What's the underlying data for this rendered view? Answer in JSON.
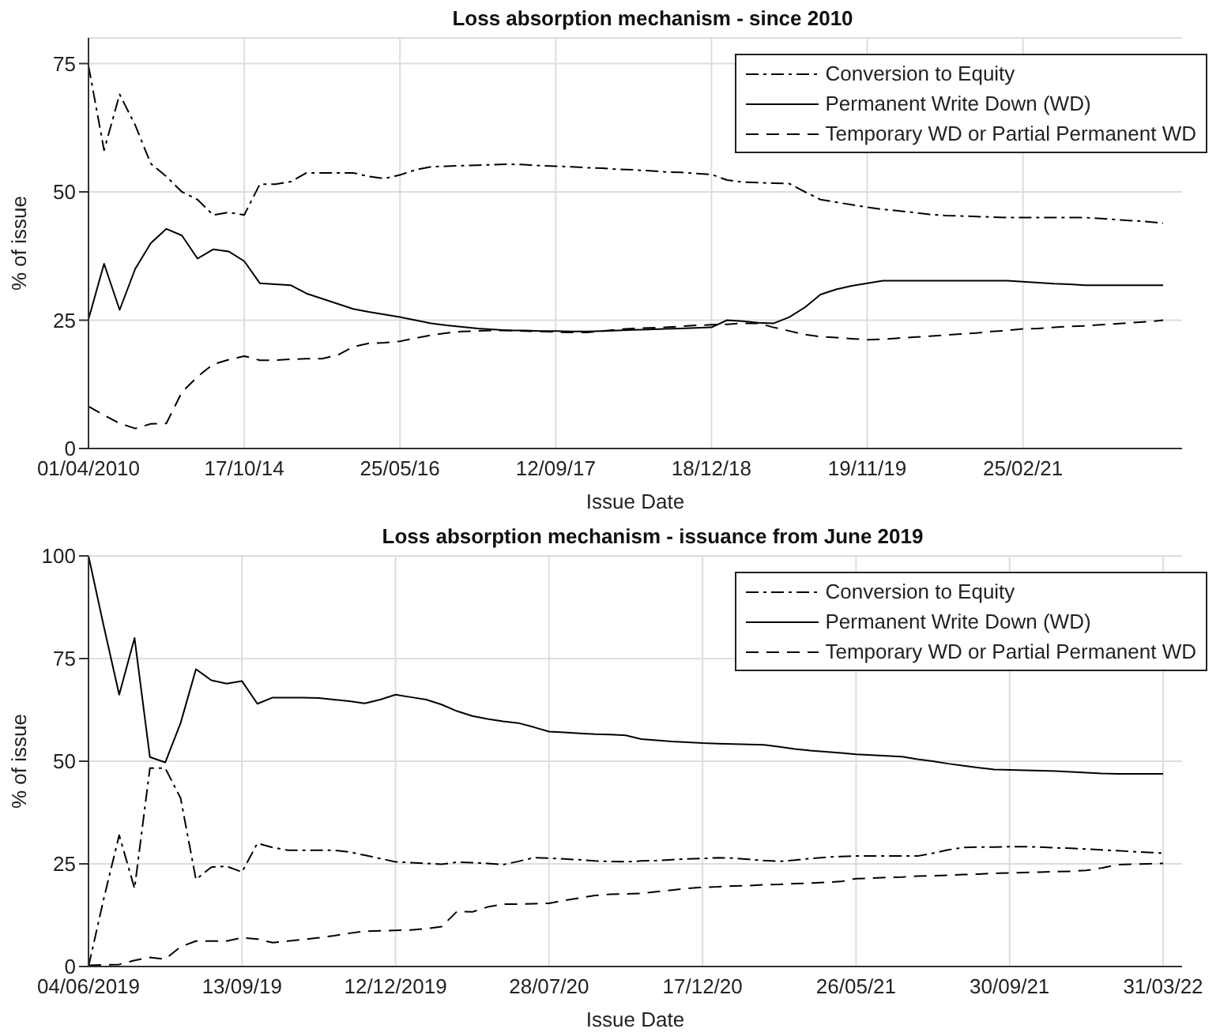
{
  "chart_data": [
    {
      "type": "line",
      "title": "Loss absorption mechanism - since 2010",
      "xlabel": "Issue Date",
      "ylabel": "% of issue",
      "categories": [
        "01/04/2010",
        null,
        null,
        null,
        null,
        null,
        null,
        null,
        null,
        null,
        "17/10/14",
        null,
        null,
        null,
        null,
        null,
        null,
        null,
        null,
        null,
        "25/05/16",
        null,
        null,
        null,
        null,
        null,
        null,
        null,
        null,
        null,
        "12/09/17",
        null,
        null,
        null,
        null,
        null,
        null,
        null,
        null,
        null,
        "18/12/18",
        null,
        null,
        null,
        null,
        null,
        null,
        null,
        null,
        null,
        "19/11/19",
        null,
        null,
        null,
        null,
        null,
        null,
        null,
        null,
        null,
        "25/02/21",
        null,
        null,
        null,
        null,
        null,
        null,
        null,
        null,
        null
      ],
      "ylim": [
        0,
        80
      ],
      "yticks": [
        0,
        25,
        50,
        75
      ],
      "grid": true,
      "legend": "top right",
      "series": [
        {
          "name": "Conversion to Equity",
          "color": "#000000",
          "line_style": "dashdot",
          "values": [
            74.6,
            58.1,
            69,
            63,
            55.5,
            53,
            50,
            48.5,
            45.5,
            46,
            45.5,
            51.5,
            51.5,
            52,
            53.7,
            53.7,
            53.7,
            53.7,
            53,
            52.6,
            53.3,
            54.3,
            54.9,
            55,
            55.1,
            55.2,
            55.3,
            55.4,
            55.3,
            55.1,
            55,
            54.9,
            54.7,
            54.6,
            54.4,
            54.3,
            54.1,
            53.9,
            53.8,
            53.6,
            53.4,
            52.3,
            51.9,
            51.8,
            51.7,
            51.6,
            50,
            48.5,
            48,
            47.5,
            47,
            46.6,
            46.3,
            46,
            45.6,
            45.4,
            45.3,
            45.2,
            45.1,
            45,
            45,
            45,
            45,
            45,
            45,
            44.8,
            44.6,
            44.4,
            44.2,
            43.9
          ]
        },
        {
          "name": "Permanent Write Down (WD)",
          "color": "#000000",
          "line_style": "solid",
          "values": [
            25.2,
            36,
            27,
            35,
            40,
            42.8,
            41.5,
            37,
            38.8,
            38.4,
            36.5,
            32.2,
            32,
            31.8,
            30.2,
            29.2,
            28.2,
            27.2,
            26.6,
            26.1,
            25.6,
            25,
            24.4,
            24,
            23.7,
            23.4,
            23.2,
            23,
            23,
            22.9,
            22.9,
            22.8,
            22.8,
            22.9,
            23,
            23.1,
            23.2,
            23.3,
            23.4,
            23.5,
            23.6,
            25,
            24.8,
            24.5,
            24.4,
            25.6,
            27.5,
            30,
            31,
            31.7,
            32.2,
            32.7,
            32.7,
            32.7,
            32.7,
            32.7,
            32.7,
            32.7,
            32.7,
            32.7,
            32.5,
            32.3,
            32.1,
            32,
            31.8,
            31.8,
            31.8,
            31.8,
            31.8,
            31.8
          ]
        },
        {
          "name": "Temporary WD or Partial Permanent WD",
          "color": "#000000",
          "line_style": "dashed",
          "values": [
            8.2,
            6.5,
            4.9,
            3.9,
            4.8,
            4.9,
            11,
            14,
            16.4,
            17.3,
            18,
            17.2,
            17.2,
            17.4,
            17.5,
            17.5,
            18.2,
            19.8,
            20.5,
            20.6,
            20.9,
            21.5,
            22.1,
            22.5,
            22.8,
            22.9,
            23,
            23,
            22.9,
            22.8,
            22.7,
            22.6,
            22.6,
            22.9,
            23.2,
            23.4,
            23.5,
            23.6,
            23.8,
            24,
            24.1,
            24.2,
            24.4,
            24.4,
            23.6,
            22.9,
            22.2,
            21.8,
            21.6,
            21.4,
            21.2,
            21.3,
            21.5,
            21.7,
            21.9,
            22.1,
            22.3,
            22.5,
            22.8,
            23,
            23.3,
            23.4,
            23.6,
            23.8,
            23.9,
            24.1,
            24.3,
            24.5,
            24.7,
            25
          ]
        }
      ]
    },
    {
      "type": "line",
      "title": "Loss absorption mechanism - issuance from June 2019",
      "xlabel": "Issue Date",
      "ylabel": "% of issue",
      "categories": [
        "04/06/2019",
        null,
        null,
        null,
        null,
        null,
        null,
        null,
        null,
        null,
        "13/09/19",
        null,
        null,
        null,
        null,
        null,
        null,
        null,
        null,
        null,
        "12/12/2019",
        null,
        null,
        null,
        null,
        null,
        null,
        null,
        null,
        null,
        "28/07/20",
        null,
        null,
        null,
        null,
        null,
        null,
        null,
        null,
        null,
        "17/12/20",
        null,
        null,
        null,
        null,
        null,
        null,
        null,
        null,
        null,
        "26/05/21",
        null,
        null,
        null,
        null,
        null,
        null,
        null,
        null,
        null,
        "30/09/21",
        null,
        null,
        null,
        null,
        null,
        null,
        null,
        null,
        null,
        "31/03/22"
      ],
      "ylim": [
        0,
        100
      ],
      "yticks": [
        0,
        25,
        50,
        75,
        100
      ],
      "grid": true,
      "legend": "top right",
      "series": [
        {
          "name": "Conversion to Equity",
          "color": "#000000",
          "line_style": "dashdot",
          "values": [
            0,
            16.6,
            32,
            19,
            48.3,
            48.3,
            41,
            21.2,
            24.2,
            24.4,
            23,
            30,
            29,
            28.3,
            28.3,
            28.3,
            28.3,
            27.9,
            27.1,
            26.3,
            25.5,
            25.3,
            25.1,
            24.9,
            25.4,
            25.3,
            25.1,
            24.8,
            25.6,
            26.5,
            26.4,
            26.2,
            26,
            25.7,
            25.6,
            25.5,
            25.7,
            25.8,
            26,
            26.2,
            26.3,
            26.5,
            26.4,
            26.1,
            25.8,
            25.6,
            25.9,
            26.3,
            26.6,
            26.8,
            26.9,
            26.9,
            26.9,
            26.9,
            26.9,
            27.6,
            28.4,
            29,
            29.1,
            29.1,
            29.2,
            29.2,
            29.1,
            28.9,
            28.8,
            28.6,
            28.4,
            28.2,
            28,
            27.8,
            27.6
          ]
        },
        {
          "name": "Permanent Write Down (WD)",
          "color": "#000000",
          "line_style": "solid",
          "values": [
            100,
            82.8,
            66.2,
            80,
            51,
            49.7,
            59.3,
            72.4,
            69.7,
            68.9,
            69.5,
            64,
            65.5,
            65.5,
            65.5,
            65.4,
            65,
            64.6,
            64.1,
            65,
            66.2,
            65.6,
            65,
            63.8,
            62.2,
            61,
            60.3,
            59.7,
            59.3,
            58.3,
            57.2,
            57,
            56.8,
            56.6,
            56.5,
            56.3,
            55.4,
            55.1,
            54.8,
            54.6,
            54.4,
            54.3,
            54.2,
            54.1,
            54,
            53.5,
            53,
            52.6,
            52.3,
            52,
            51.7,
            51.5,
            51.3,
            51.1,
            50.5,
            50,
            49.4,
            48.9,
            48.4,
            48,
            47.9,
            47.8,
            47.7,
            47.6,
            47.4,
            47.2,
            47,
            46.9,
            46.9,
            46.9,
            46.9
          ]
        },
        {
          "name": "Temporary WD or Partial Permanent WD",
          "color": "#000000",
          "line_style": "dashed",
          "values": [
            0.3,
            0.4,
            0.5,
            1.5,
            2.2,
            1.8,
            4.8,
            6.2,
            6.2,
            6.2,
            7,
            6.7,
            5.8,
            6.2,
            6.6,
            7,
            7.5,
            8.1,
            8.6,
            8.7,
            8.8,
            8.9,
            9.2,
            9.7,
            13.4,
            13.3,
            14.5,
            15.2,
            15.2,
            15.3,
            15.4,
            16.1,
            16.7,
            17.3,
            17.6,
            17.7,
            17.8,
            18.2,
            18.6,
            19,
            19.3,
            19.4,
            19.6,
            19.7,
            19.9,
            20,
            20.2,
            20.3,
            20.5,
            20.7,
            21.4,
            21.5,
            21.7,
            21.8,
            22,
            22.1,
            22.2,
            22.4,
            22.5,
            22.7,
            22.8,
            22.9,
            23,
            23.1,
            23.2,
            23.4,
            24,
            24.8,
            24.9,
            25,
            25.1
          ]
        }
      ]
    }
  ]
}
